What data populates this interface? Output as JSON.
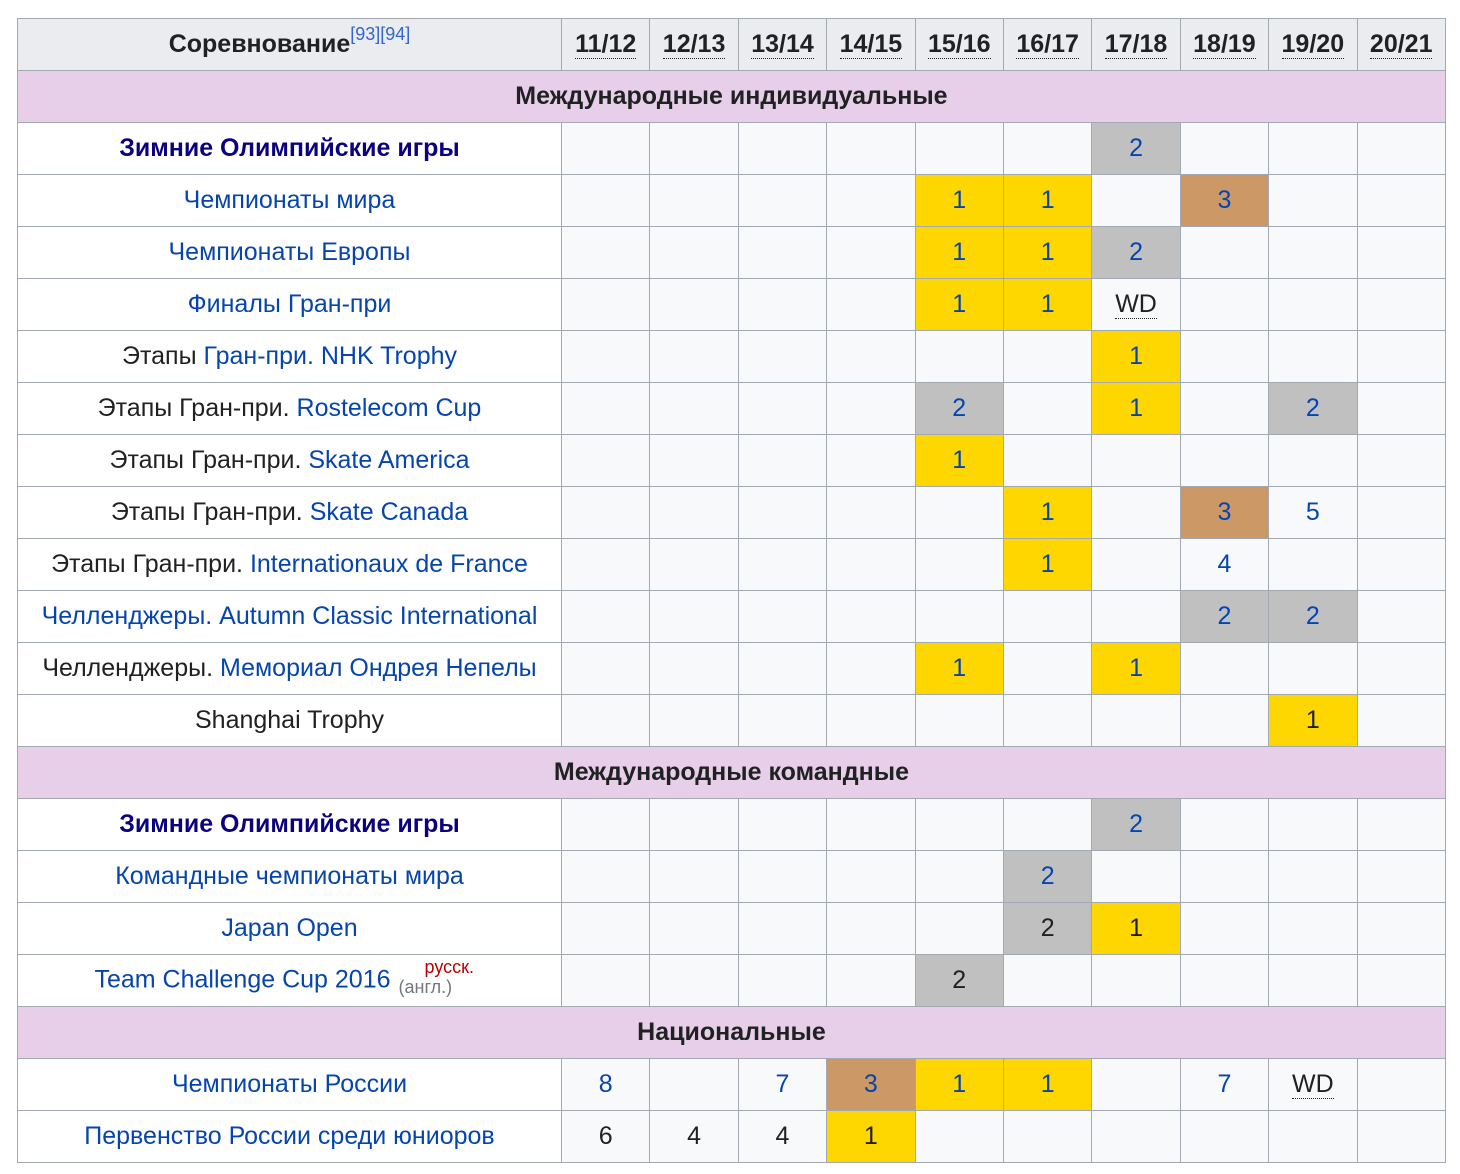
{
  "header": {
    "competition_label": "Соревнование",
    "ref1": "[93]",
    "ref2": "[94]",
    "seasons": [
      "11/12",
      "12/13",
      "13/14",
      "14/15",
      "15/16",
      "16/17",
      "17/18",
      "18/19",
      "19/20",
      "20/21"
    ]
  },
  "sections": [
    {
      "title": "Международные индивидуальные",
      "rows": [
        {
          "prefix": "",
          "name": "Зимние Олимпийские игры",
          "style": "bold-link",
          "cells": [
            "",
            "",
            "",
            "",
            "",
            "",
            {
              "v": "2",
              "m": "silver",
              "c": "blue"
            },
            "",
            "",
            ""
          ]
        },
        {
          "prefix": "",
          "name": "Чемпионаты мира",
          "style": "link",
          "cells": [
            "",
            "",
            "",
            "",
            {
              "v": "1",
              "m": "gold",
              "c": "blue"
            },
            {
              "v": "1",
              "m": "gold",
              "c": "blue"
            },
            "",
            {
              "v": "3",
              "m": "bronze",
              "c": "blue"
            },
            "",
            ""
          ]
        },
        {
          "prefix": "",
          "name": "Чемпионаты Европы",
          "style": "link",
          "cells": [
            "",
            "",
            "",
            "",
            {
              "v": "1",
              "m": "gold",
              "c": "blue"
            },
            {
              "v": "1",
              "m": "gold",
              "c": "blue"
            },
            {
              "v": "2",
              "m": "silver",
              "c": "blue"
            },
            "",
            "",
            ""
          ]
        },
        {
          "prefix": "",
          "name": "Финалы Гран-при",
          "style": "link",
          "cells": [
            "",
            "",
            "",
            "",
            {
              "v": "1",
              "m": "gold",
              "c": "blue"
            },
            {
              "v": "1",
              "m": "gold",
              "c": "blue"
            },
            {
              "v": "WD",
              "m": "",
              "c": "abbr"
            },
            "",
            "",
            ""
          ]
        },
        {
          "prefix": "Этапы ",
          "name": "Гран-при. NHK Trophy",
          "style": "link",
          "cells": [
            "",
            "",
            "",
            "",
            "",
            "",
            {
              "v": "1",
              "m": "gold",
              "c": "blue"
            },
            "",
            "",
            ""
          ]
        },
        {
          "prefix": "Этапы Гран-при. ",
          "name": "Rostelecom Cup",
          "style": "link",
          "cells": [
            "",
            "",
            "",
            "",
            {
              "v": "2",
              "m": "silver",
              "c": "blue"
            },
            "",
            {
              "v": "1",
              "m": "gold",
              "c": "blue"
            },
            "",
            {
              "v": "2",
              "m": "silver",
              "c": "blue"
            },
            ""
          ]
        },
        {
          "prefix": "Этапы Гран-при. ",
          "name": "Skate America",
          "style": "link",
          "cells": [
            "",
            "",
            "",
            "",
            {
              "v": "1",
              "m": "gold",
              "c": "blue"
            },
            "",
            "",
            "",
            "",
            ""
          ]
        },
        {
          "prefix": "Этапы Гран-при. ",
          "name": "Skate Canada",
          "style": "link",
          "cells": [
            "",
            "",
            "",
            "",
            "",
            {
              "v": "1",
              "m": "gold",
              "c": "blue"
            },
            "",
            {
              "v": "3",
              "m": "bronze",
              "c": "blue"
            },
            {
              "v": "5",
              "m": "",
              "c": "blue"
            },
            ""
          ]
        },
        {
          "prefix": "Этапы Гран-при. ",
          "name": "Internationaux de France",
          "style": "link",
          "cells": [
            "",
            "",
            "",
            "",
            "",
            {
              "v": "1",
              "m": "gold",
              "c": "blue"
            },
            "",
            {
              "v": "4",
              "m": "",
              "c": "blue"
            },
            "",
            ""
          ]
        },
        {
          "prefix": "",
          "name": "Челленджеры. Autumn Classic International",
          "style": "link",
          "cells": [
            "",
            "",
            "",
            "",
            "",
            "",
            "",
            {
              "v": "2",
              "m": "silver",
              "c": "blue"
            },
            {
              "v": "2",
              "m": "silver",
              "c": "blue"
            },
            ""
          ]
        },
        {
          "prefix": "Челленджеры. ",
          "name": "Мемориал Ондрея Непелы",
          "style": "link",
          "cells": [
            "",
            "",
            "",
            "",
            {
              "v": "1",
              "m": "gold",
              "c": "blue"
            },
            "",
            {
              "v": "1",
              "m": "gold",
              "c": "blue"
            },
            "",
            "",
            ""
          ]
        },
        {
          "prefix": "Shanghai Trophy",
          "name": "",
          "style": "plain",
          "cells": [
            "",
            "",
            "",
            "",
            "",
            "",
            "",
            "",
            {
              "v": "1",
              "m": "gold",
              "c": "black"
            },
            ""
          ]
        }
      ]
    },
    {
      "title": "Международные командные",
      "rows": [
        {
          "prefix": "",
          "name": "Зимние Олимпийские игры",
          "style": "bold-link",
          "cells": [
            "",
            "",
            "",
            "",
            "",
            "",
            {
              "v": "2",
              "m": "silver",
              "c": "blue"
            },
            "",
            "",
            ""
          ]
        },
        {
          "prefix": "",
          "name": "Командные чемпионаты мира",
          "style": "link",
          "cells": [
            "",
            "",
            "",
            "",
            "",
            {
              "v": "2",
              "m": "silver",
              "c": "blue"
            },
            "",
            "",
            "",
            ""
          ]
        },
        {
          "prefix": "",
          "name": "Japan Open",
          "style": "link",
          "cells": [
            "",
            "",
            "",
            "",
            "",
            {
              "v": "2",
              "m": "silver",
              "c": "black"
            },
            {
              "v": "1",
              "m": "gold",
              "c": "black"
            },
            "",
            "",
            ""
          ]
        },
        {
          "prefix": "",
          "name": "Team Challenge Cup 2016",
          "style": "link",
          "ilh": {
            "ru": "русск.",
            "en": "(англ.)"
          },
          "cells": [
            "",
            "",
            "",
            "",
            {
              "v": "2",
              "m": "silver",
              "c": "black"
            },
            "",
            "",
            "",
            "",
            ""
          ]
        }
      ]
    },
    {
      "title": "Национальные",
      "rows": [
        {
          "prefix": "",
          "name": "Чемпионаты России",
          "style": "link",
          "cells": [
            {
              "v": "8",
              "m": "",
              "c": "blue"
            },
            "",
            {
              "v": "7",
              "m": "",
              "c": "blue"
            },
            {
              "v": "3",
              "m": "bronze",
              "c": "blue"
            },
            {
              "v": "1",
              "m": "gold",
              "c": "blue"
            },
            {
              "v": "1",
              "m": "gold",
              "c": "blue"
            },
            "",
            {
              "v": "7",
              "m": "",
              "c": "blue"
            },
            {
              "v": "WD",
              "m": "",
              "c": "abbr"
            },
            ""
          ]
        },
        {
          "prefix": "",
          "name": "Первенство России среди юниоров",
          "style": "link",
          "cells": [
            {
              "v": "6",
              "m": "",
              "c": "black"
            },
            {
              "v": "4",
              "m": "",
              "c": "black"
            },
            {
              "v": "4",
              "m": "",
              "c": "black"
            },
            {
              "v": "1",
              "m": "gold",
              "c": "black"
            },
            "",
            "",
            "",
            "",
            "",
            ""
          ]
        }
      ]
    }
  ]
}
